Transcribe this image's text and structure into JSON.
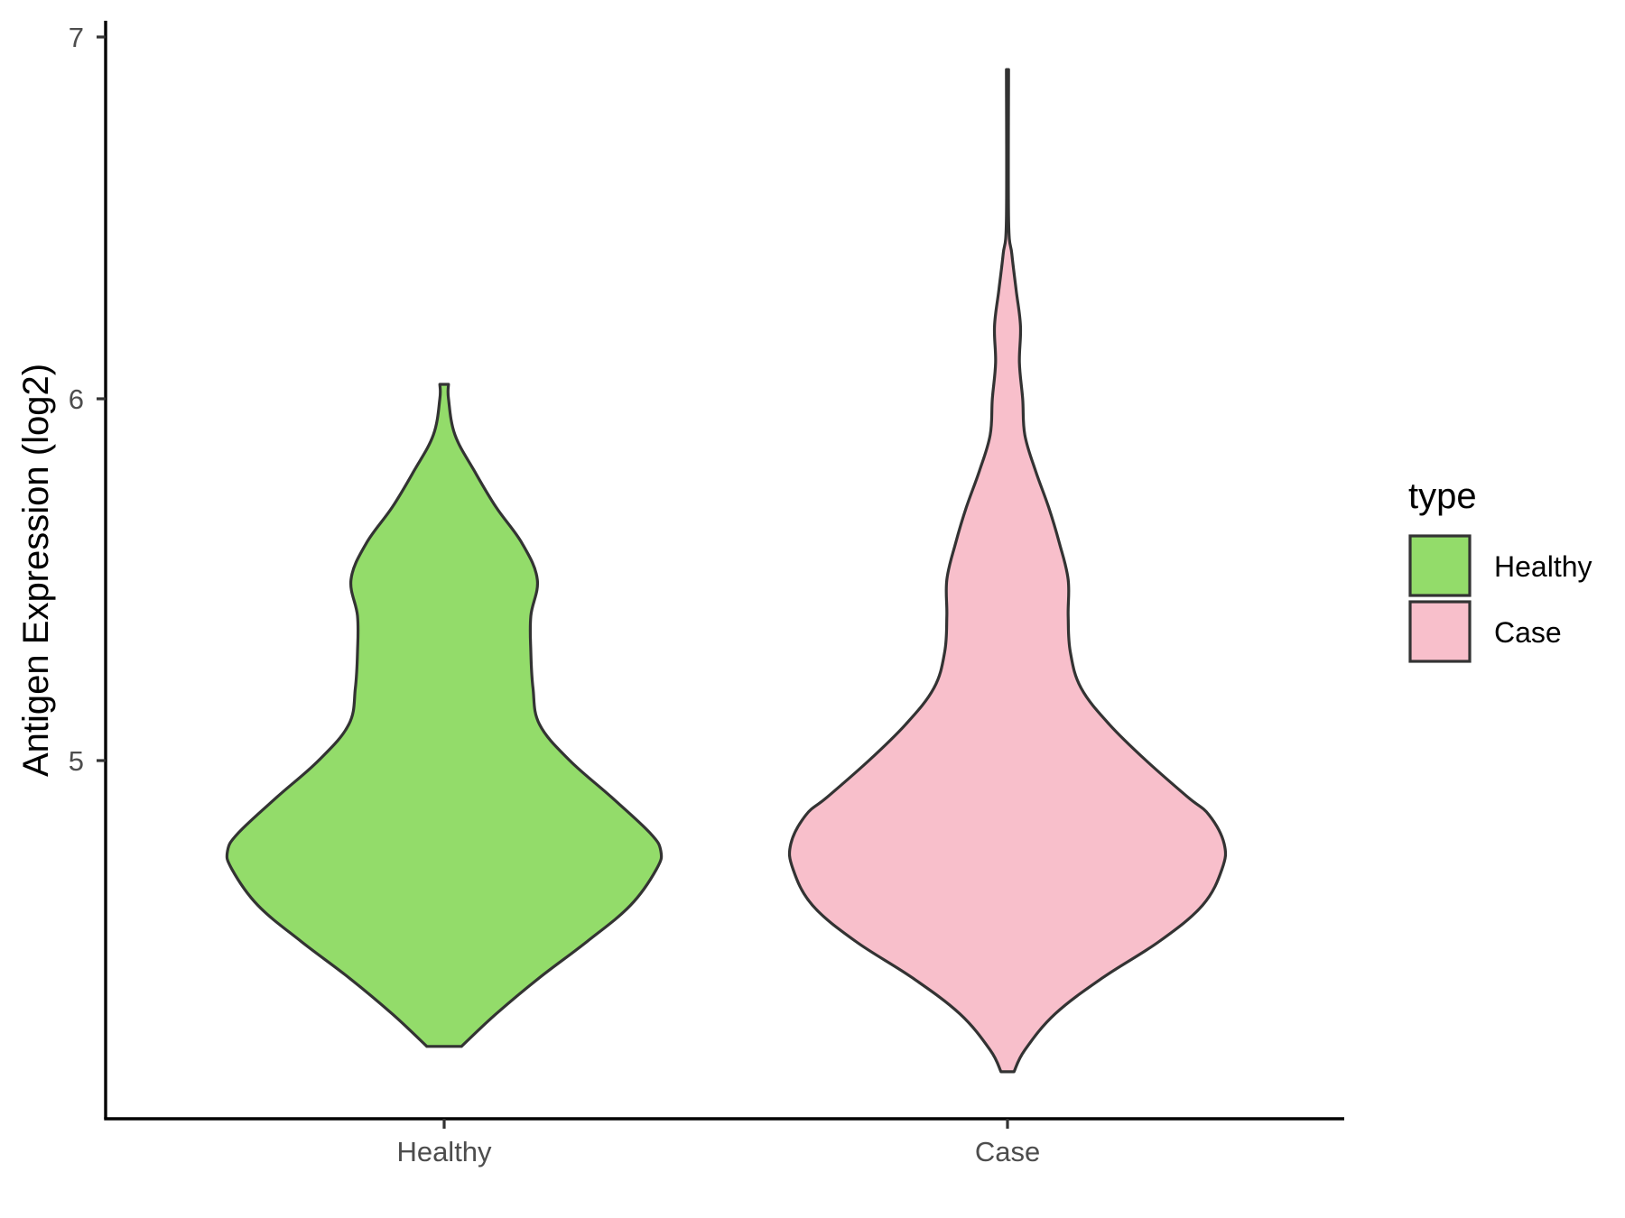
{
  "chart_data": {
    "type": "violin",
    "title": "",
    "xlabel": "",
    "ylabel": "Antigen Expression (log2)",
    "ylim": [
      4.0,
      7.05
    ],
    "yticks": [
      "5",
      "6",
      "7"
    ],
    "categories": [
      "Healthy",
      "Case"
    ],
    "legend": {
      "title": "type",
      "position": "right",
      "entries": [
        {
          "label": "Healthy",
          "color": "#93DC6A"
        },
        {
          "label": "Case",
          "color": "#F8BFCB"
        }
      ]
    },
    "grid": false,
    "series": [
      {
        "name": "Healthy",
        "color": "#93DC6A",
        "density": [
          [
            4.21,
            0.08
          ],
          [
            4.3,
            0.24
          ],
          [
            4.4,
            0.44
          ],
          [
            4.5,
            0.66
          ],
          [
            4.6,
            0.86
          ],
          [
            4.7,
            0.98
          ],
          [
            4.75,
            1.0
          ],
          [
            4.8,
            0.95
          ],
          [
            4.9,
            0.77
          ],
          [
            5.0,
            0.58
          ],
          [
            5.1,
            0.44
          ],
          [
            5.2,
            0.41
          ],
          [
            5.3,
            0.4
          ],
          [
            5.4,
            0.4
          ],
          [
            5.5,
            0.43
          ],
          [
            5.6,
            0.36
          ],
          [
            5.7,
            0.24
          ],
          [
            5.8,
            0.14
          ],
          [
            5.9,
            0.05
          ],
          [
            6.0,
            0.02
          ],
          [
            6.04,
            0.02
          ]
        ]
      },
      {
        "name": "Case",
        "color": "#F8BFCB",
        "density": [
          [
            4.14,
            0.03
          ],
          [
            4.2,
            0.08
          ],
          [
            4.3,
            0.22
          ],
          [
            4.4,
            0.44
          ],
          [
            4.5,
            0.7
          ],
          [
            4.6,
            0.9
          ],
          [
            4.7,
            0.99
          ],
          [
            4.77,
            1.0
          ],
          [
            4.85,
            0.93
          ],
          [
            4.9,
            0.83
          ],
          [
            5.0,
            0.64
          ],
          [
            5.1,
            0.47
          ],
          [
            5.2,
            0.34
          ],
          [
            5.3,
            0.29
          ],
          [
            5.4,
            0.28
          ],
          [
            5.5,
            0.28
          ],
          [
            5.6,
            0.24
          ],
          [
            5.7,
            0.19
          ],
          [
            5.8,
            0.13
          ],
          [
            5.9,
            0.08
          ],
          [
            6.0,
            0.07
          ],
          [
            6.1,
            0.055
          ],
          [
            6.2,
            0.06
          ],
          [
            6.3,
            0.04
          ],
          [
            6.4,
            0.02
          ],
          [
            6.5,
            0.005
          ],
          [
            6.91,
            0.005
          ]
        ]
      }
    ]
  }
}
